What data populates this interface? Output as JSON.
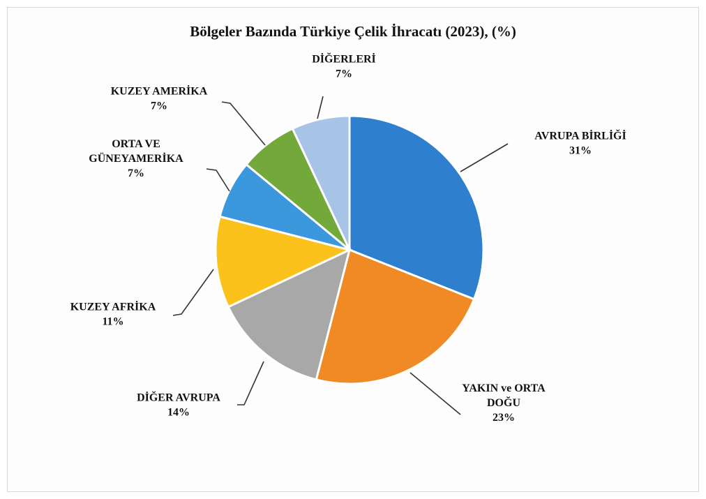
{
  "chart_data": {
    "type": "pie",
    "title": "Bölgeler Bazında Türkiye Çelik İhracatı (2023), (%)",
    "slices": [
      {
        "label": [
          "AVRUPA  BİRLİĞİ"
        ],
        "value_label": "31%",
        "value": 31,
        "color": "#2f7fcf"
      },
      {
        "label": [
          "YAKIN ve ORTA",
          "DOĞU"
        ],
        "value_label": "23%",
        "value": 23,
        "color": "#f08a25"
      },
      {
        "label": [
          "DİĞER AVRUPA"
        ],
        "value_label": "14%",
        "value": 14,
        "color": "#a8a8a8"
      },
      {
        "label": [
          "KUZEY  AFRİKA"
        ],
        "value_label": "11%",
        "value": 11,
        "color": "#fcc21c"
      },
      {
        "label": [
          "ORTA VE",
          "GÜNEYAMERİKA"
        ],
        "value_label": "7%",
        "value": 7,
        "color": "#3b98dc"
      },
      {
        "label": [
          "KUZEY  AMERİKA"
        ],
        "value_label": "7%",
        "value": 7,
        "color": "#73a83a"
      },
      {
        "label": [
          "DİĞERLERİ"
        ],
        "value_label": "7%",
        "value": 7,
        "color": "#a7c3e6"
      }
    ],
    "start_angle": 0,
    "direction": "clockwise"
  }
}
